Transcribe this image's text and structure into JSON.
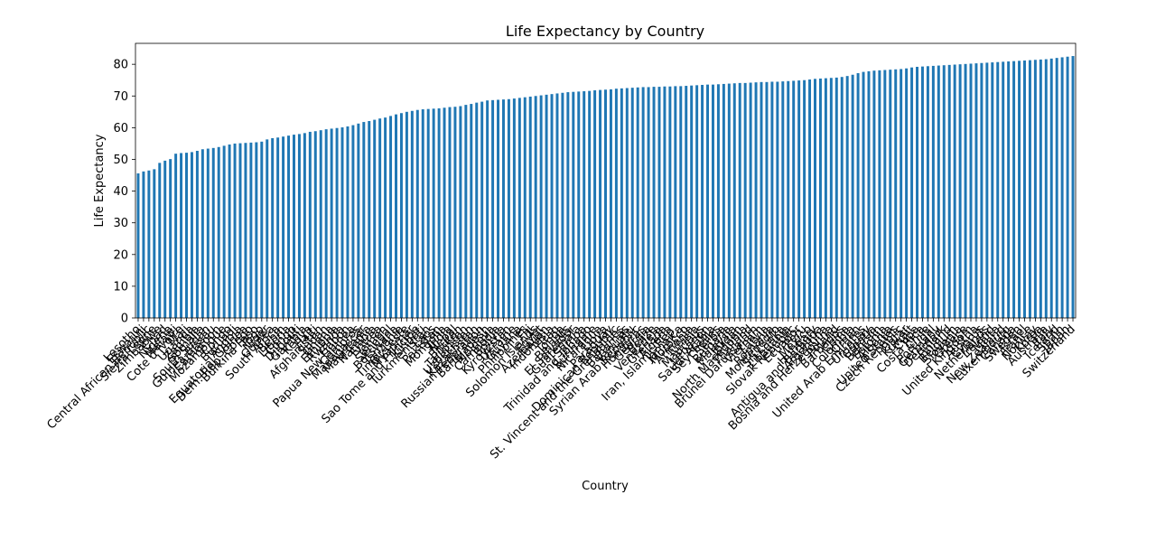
{
  "chart_data": {
    "type": "bar",
    "title": "Life Expectancy by Country",
    "xlabel": "Country",
    "ylabel": "Life Expectancy",
    "ylim": [
      0,
      86.6
    ],
    "yticks": [
      0,
      10,
      20,
      30,
      40,
      50,
      60,
      70,
      80
    ],
    "grid": false,
    "legend": "none",
    "color": "#1f77b4",
    "categories": [
      "Lesotho",
      "Eswatini",
      "Central African Republic",
      "Sierra Leone",
      "Zimbabwe",
      "Chad",
      "Nigeria",
      "Malawi",
      "Cote d'Ivoire",
      "Mali",
      "Uganda",
      "Zambia",
      "Somalia",
      "South Sudan",
      "Guinea-Bissau",
      "Cameroon",
      "Mozambique",
      "Congo",
      "Burundi",
      "Angola",
      "Equatorial Guinea",
      "Dem. Rep. Congo",
      "Burkina Faso",
      "Togo",
      "Niger",
      "Guinea",
      "South Africa",
      "Benin",
      "Liberia",
      "Congo",
      "Djibouti",
      "Gambia",
      "Kenya",
      "Haiti",
      "Afghanistan",
      "Sudan",
      "Ghana",
      "Ethiopia",
      "Rwanda",
      "Gabon",
      "Papua New Guinea",
      "Comoros",
      "Madagascar",
      "Mauritania",
      "Namibia",
      "Eritrea",
      "Yemen",
      "Senegal",
      "Botswana",
      "Tanzania",
      "Timor-Leste",
      "Myanmar",
      "Sao Tome and Principe",
      "Kiribati",
      "Turkmenistan",
      "Laos",
      "Pakistan",
      "Mongolia",
      "India",
      "Nepal",
      "Bhutan",
      "Tajikistan",
      "Uzbekistan",
      "Kazakhstan",
      "Russian Federation",
      "Bangladesh",
      "Moldova",
      "Cambodia",
      "Bolivia",
      "Kyrgyzstan",
      "Ukraine",
      "Guyana",
      "Philippines",
      "Fiji",
      "Solomon Islands",
      "Egypt",
      "Azerbaijan",
      "Indonesia",
      "Iraq",
      "Tonga",
      "Belarus",
      "El Salvador",
      "Guatemala",
      "Samoa",
      "Trinidad and Tobago",
      "Suriname",
      "Nicaragua",
      "Libya",
      "Paraguay",
      "Dominican Republic",
      "St. Vincent and the Grenadines",
      "Bahamas",
      "Vanuatu",
      "Syrian Arab Republic",
      "Honduras",
      "Georgia",
      "Belize",
      "Venezuela",
      "Grenada",
      "Algeria",
      "Iran, Islamic Rep.",
      "Jamaica",
      "Morocco",
      "Armenia",
      "Tunisia",
      "Mauritius",
      "Lebanon",
      "Saudi Arabia",
      "Seychelles",
      "Serbia",
      "Bulgaria",
      "Malaysia",
      "Jordan",
      "North Macedonia",
      "Thailand",
      "Brunei Darussalam",
      "Vietnam",
      "Latvia",
      "Romania",
      "Montenegro",
      "Sri Lanka",
      "Lithuania",
      "Slovak Republic",
      "Ecuador",
      "Peru",
      "Mexico",
      "Hungary",
      "Antigua and Barbuda",
      "Argentina",
      "Bosnia and Herzegovina",
      "Poland",
      "Barbados",
      "China",
      "Colombia",
      "Oman",
      "United Arab Emirates",
      "Uruguay",
      "Croatia",
      "Bahrain",
      "Estonia",
      "Albania",
      "United States",
      "Czech Republic",
      "Qatar",
      "Kuwait",
      "Cuba",
      "Costa Rica",
      "Chile",
      "Portugal",
      "Germany",
      "Denmark",
      "Finland",
      "Belgium",
      "Slovenia",
      "Greece",
      "United Kingdom",
      "Austria",
      "Cyprus",
      "Netherlands",
      "Ireland",
      "Malta",
      "New Zealand",
      "Luxembourg",
      "Canada",
      "Sweden",
      "Israel",
      "France",
      "Norway",
      "Korea",
      "Australia",
      "Italy",
      "Iceland",
      "Spain",
      "Japan",
      "Switzerland"
    ],
    "values": [
      45.6,
      46.2,
      46.5,
      46.9,
      48.9,
      49.6,
      50.1,
      51.8,
      52.0,
      52.1,
      52.3,
      52.7,
      53.2,
      53.4,
      53.6,
      53.9,
      54.3,
      54.7,
      55.0,
      55.1,
      55.2,
      55.3,
      55.4,
      55.6,
      56.3,
      56.7,
      56.9,
      57.2,
      57.5,
      57.8,
      58.0,
      58.3,
      58.7,
      58.9,
      59.2,
      59.5,
      59.7,
      59.9,
      60.1,
      60.4,
      60.8,
      61.3,
      61.8,
      62.1,
      62.5,
      62.9,
      63.2,
      63.7,
      64.2,
      64.6,
      65.0,
      65.3,
      65.6,
      65.8,
      65.9,
      66.0,
      66.1,
      66.3,
      66.5,
      66.6,
      66.8,
      67.2,
      67.5,
      67.9,
      68.2,
      68.6,
      68.7,
      68.8,
      68.9,
      69.0,
      69.2,
      69.4,
      69.6,
      69.8,
      70.0,
      70.2,
      70.4,
      70.6,
      70.8,
      71.0,
      71.2,
      71.3,
      71.4,
      71.5,
      71.6,
      71.8,
      71.9,
      72.0,
      72.1,
      72.3,
      72.4,
      72.5,
      72.6,
      72.7,
      72.8,
      72.8,
      72.9,
      72.9,
      73.0,
      73.0,
      73.1,
      73.1,
      73.2,
      73.3,
      73.4,
      73.5,
      73.6,
      73.6,
      73.7,
      73.8,
      73.9,
      74.0,
      74.1,
      74.1,
      74.2,
      74.3,
      74.4,
      74.4,
      74.5,
      74.5,
      74.6,
      74.7,
      74.8,
      74.9,
      75.0,
      75.2,
      75.4,
      75.5,
      75.6,
      75.7,
      75.8,
      76.0,
      76.3,
      76.7,
      77.2,
      77.6,
      77.8,
      78.0,
      78.1,
      78.2,
      78.3,
      78.4,
      78.5,
      78.7,
      79.0,
      79.2,
      79.3,
      79.4,
      79.5,
      79.6,
      79.7,
      79.8,
      79.9,
      80.0,
      80.1,
      80.2,
      80.3,
      80.4,
      80.5,
      80.6,
      80.7,
      80.8,
      80.9,
      81.0,
      81.1,
      81.2,
      81.3,
      81.4,
      81.5,
      81.6,
      81.8,
      82.0,
      82.2,
      82.4,
      82.6
    ]
  }
}
